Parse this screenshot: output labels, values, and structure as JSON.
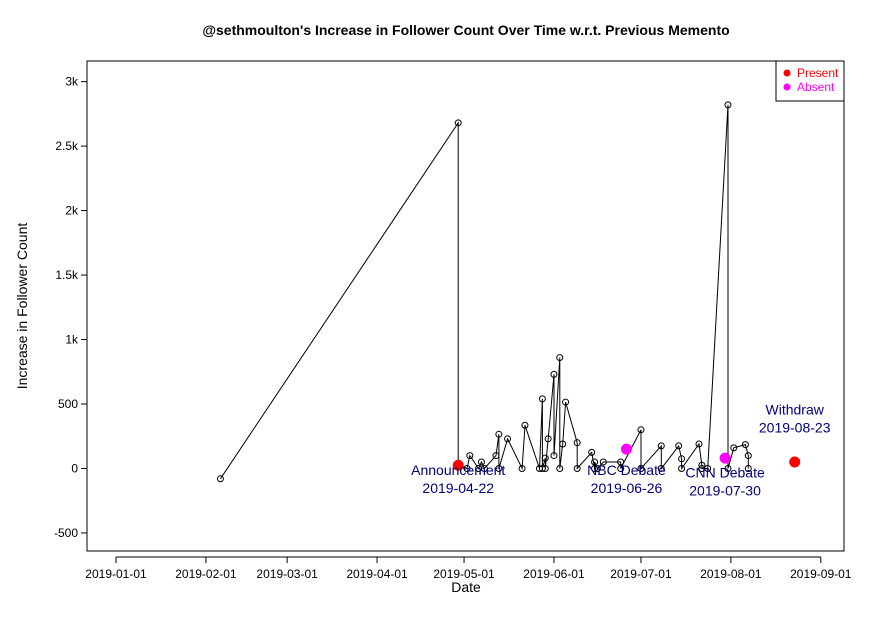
{
  "chart_data": {
    "type": "scatter",
    "title": "@sethmoulton's Increase in Follower Count Over Time w.r.t. Previous Memento",
    "xlabel": "Date",
    "ylabel": "Increase in Follower Count",
    "xlim": [
      "2018-12-22",
      "2019-09-09"
    ],
    "ylim": [
      -640,
      3160
    ],
    "x_ticks": [
      {
        "value": "2019-01-01",
        "label": "2019-01-01"
      },
      {
        "value": "2019-02-01",
        "label": "2019-02-01"
      },
      {
        "value": "2019-03-01",
        "label": "2019-03-01"
      },
      {
        "value": "2019-04-01",
        "label": "2019-04-01"
      },
      {
        "value": "2019-05-01",
        "label": "2019-05-01"
      },
      {
        "value": "2019-06-01",
        "label": "2019-06-01"
      },
      {
        "value": "2019-07-01",
        "label": "2019-07-01"
      },
      {
        "value": "2019-08-01",
        "label": "2019-08-01"
      },
      {
        "value": "2019-09-01",
        "label": "2019-09-01"
      }
    ],
    "y_ticks": [
      {
        "value": -500,
        "label": "-500"
      },
      {
        "value": 0,
        "label": "0"
      },
      {
        "value": 500,
        "label": "500"
      },
      {
        "value": 1000,
        "label": "1k"
      },
      {
        "value": 1500,
        "label": "1.5k"
      },
      {
        "value": 2000,
        "label": "2k"
      },
      {
        "value": 2500,
        "label": "2.5k"
      },
      {
        "value": 3000,
        "label": "3k"
      }
    ],
    "grid": false,
    "series": [
      {
        "kind": "line",
        "points": [
          {
            "x": "2019-02-06",
            "y": -80
          },
          {
            "x": "2019-04-29",
            "y": 2680
          },
          {
            "x": "2019-04-29",
            "y": 30
          },
          {
            "x": "2019-05-02",
            "y": 0
          },
          {
            "x": "2019-05-03",
            "y": 100
          },
          {
            "x": "2019-05-06",
            "y": 0
          },
          {
            "x": "2019-05-07",
            "y": 50
          },
          {
            "x": "2019-05-08",
            "y": 0
          },
          {
            "x": "2019-05-12",
            "y": 100
          },
          {
            "x": "2019-05-13",
            "y": 265
          },
          {
            "x": "2019-05-13",
            "y": 0
          },
          {
            "x": "2019-05-16",
            "y": 230
          },
          {
            "x": "2019-05-21",
            "y": 0
          },
          {
            "x": "2019-05-22",
            "y": 335
          },
          {
            "x": "2019-05-27",
            "y": 0
          },
          {
            "x": "2019-05-28",
            "y": 540
          },
          {
            "x": "2019-05-28",
            "y": 0
          },
          {
            "x": "2019-05-29",
            "y": 80
          },
          {
            "x": "2019-05-29",
            "y": 0
          },
          {
            "x": "2019-05-30",
            "y": 230
          },
          {
            "x": "2019-06-01",
            "y": 730
          },
          {
            "x": "2019-06-01",
            "y": 100
          },
          {
            "x": "2019-06-03",
            "y": 860
          },
          {
            "x": "2019-06-03",
            "y": 0
          },
          {
            "x": "2019-06-04",
            "y": 190
          },
          {
            "x": "2019-06-05",
            "y": 515
          },
          {
            "x": "2019-06-09",
            "y": 200
          },
          {
            "x": "2019-06-09",
            "y": 0
          },
          {
            "x": "2019-06-14",
            "y": 125
          },
          {
            "x": "2019-06-15",
            "y": 0
          },
          {
            "x": "2019-06-15",
            "y": 50
          },
          {
            "x": "2019-06-16",
            "y": 0
          },
          {
            "x": "2019-06-18",
            "y": 50
          },
          {
            "x": "2019-06-24",
            "y": 50
          },
          {
            "x": "2019-06-24",
            "y": 0
          },
          {
            "x": "2019-07-01",
            "y": 300
          },
          {
            "x": "2019-07-01",
            "y": 0
          },
          {
            "x": "2019-07-08",
            "y": 175
          },
          {
            "x": "2019-07-08",
            "y": 0
          },
          {
            "x": "2019-07-14",
            "y": 175
          },
          {
            "x": "2019-07-15",
            "y": 75
          },
          {
            "x": "2019-07-15",
            "y": 0
          },
          {
            "x": "2019-07-21",
            "y": 190
          },
          {
            "x": "2019-07-22",
            "y": 25
          },
          {
            "x": "2019-07-22",
            "y": 0
          },
          {
            "x": "2019-07-24",
            "y": 0
          },
          {
            "x": "2019-07-31",
            "y": 2820
          },
          {
            "x": "2019-07-31",
            "y": 0
          },
          {
            "x": "2019-08-02",
            "y": 160
          },
          {
            "x": "2019-08-06",
            "y": 185
          },
          {
            "x": "2019-08-07",
            "y": 100
          },
          {
            "x": "2019-08-07",
            "y": 0
          }
        ]
      },
      {
        "name": "Present",
        "kind": "event",
        "color": "#ff0000",
        "points": [
          {
            "x": "2019-04-29",
            "y": 25
          },
          {
            "x": "2019-08-23",
            "y": 50
          }
        ]
      },
      {
        "name": "Absent",
        "kind": "event",
        "color": "#ff00ff",
        "points": [
          {
            "x": "2019-06-26",
            "y": 150
          },
          {
            "x": "2019-07-30",
            "y": 80
          }
        ]
      }
    ],
    "legend": {
      "position": "top-right",
      "entries": [
        {
          "label": "Present",
          "color": "#ff0000"
        },
        {
          "label": "Absent",
          "color": "#ff00ff"
        }
      ]
    },
    "annotations": [
      {
        "lines": [
          "Announcement",
          "2019-04-22"
        ],
        "color": "#00007f",
        "x": "2019-04-29",
        "y": -50
      },
      {
        "lines": [
          "NBC Debate",
          "2019-06-26"
        ],
        "color": "#00007f",
        "x": "2019-06-26",
        "y": -50
      },
      {
        "lines": [
          "CNN Debate",
          "2019-07-30"
        ],
        "color": "#00007f",
        "x": "2019-07-30",
        "y": -70
      },
      {
        "lines": [
          "Withdraw",
          "2019-08-23"
        ],
        "color": "#00007f",
        "x": "2019-08-23",
        "y": 420
      }
    ]
  }
}
